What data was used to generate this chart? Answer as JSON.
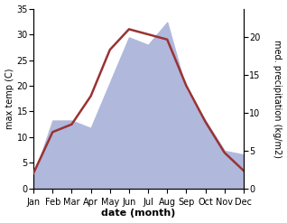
{
  "months": [
    "Jan",
    "Feb",
    "Mar",
    "Apr",
    "May",
    "Jun",
    "Jul",
    "Aug",
    "Sep",
    "Oct",
    "Nov",
    "Dec"
  ],
  "temp_max": [
    3.0,
    11.0,
    12.5,
    18.0,
    27.0,
    31.0,
    30.0,
    29.0,
    20.0,
    13.0,
    7.0,
    3.5
  ],
  "precip": [
    1.5,
    9.0,
    9.0,
    8.0,
    14.0,
    20.0,
    19.0,
    22.0,
    13.0,
    9.0,
    5.0,
    4.5
  ],
  "temp_ylim": [
    0,
    35
  ],
  "precip_ylim": [
    0,
    23.8
  ],
  "temp_color": "#993333",
  "precip_fill_color": "#b0b8dc",
  "xlabel": "date (month)",
  "ylabel_left": "max temp (C)",
  "ylabel_right": "med. precipitation (kg/m2)",
  "bg_color": "#ffffff",
  "temp_yticks": [
    0,
    5,
    10,
    15,
    20,
    25,
    30,
    35
  ],
  "precip_yticks": [
    0,
    5,
    10,
    15,
    20
  ],
  "axis_fontsize": 7,
  "label_fontsize": 8
}
